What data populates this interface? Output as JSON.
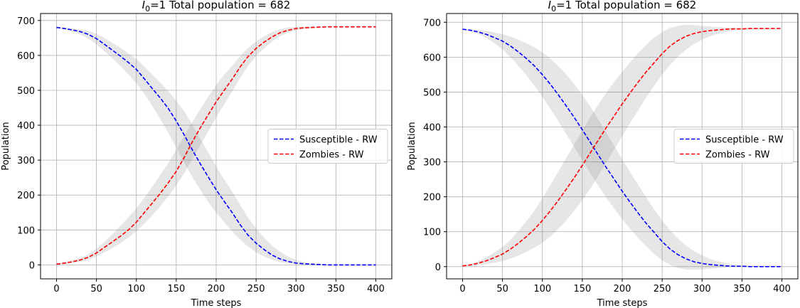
{
  "chart_data": [
    {
      "type": "line",
      "title_prefix": "I",
      "title_subscript": "0",
      "title_suffix": "=1 Total population = 682",
      "xlabel": "Time steps",
      "ylabel": "Population",
      "xlim": [
        -20,
        420
      ],
      "ylim": [
        -40,
        720
      ],
      "xticks": [
        0,
        50,
        100,
        150,
        200,
        250,
        300,
        350,
        400
      ],
      "yticks": [
        0,
        100,
        200,
        300,
        400,
        500,
        600,
        700
      ],
      "grid": true,
      "legend_position": "center-right",
      "series": [
        {
          "name": "Susceptible - RW",
          "color": "#0000ff",
          "style": "dashed",
          "x": [
            0,
            10,
            20,
            30,
            40,
            50,
            60,
            70,
            80,
            90,
            100,
            110,
            120,
            130,
            140,
            150,
            160,
            170,
            180,
            190,
            200,
            210,
            220,
            230,
            240,
            250,
            260,
            270,
            280,
            290,
            300,
            310,
            320,
            330,
            340,
            350,
            360,
            370,
            380,
            390,
            400
          ],
          "values": [
            680,
            677,
            673,
            668,
            660,
            648,
            632,
            615,
            598,
            580,
            560,
            533,
            505,
            478,
            448,
            412,
            372,
            330,
            290,
            252,
            215,
            182,
            150,
            115,
            85,
            62,
            44,
            28,
            17,
            10,
            5,
            3,
            2,
            1,
            0,
            0,
            0,
            0,
            0,
            0,
            0
          ],
          "band_low": [
            680,
            675,
            668,
            660,
            648,
            632,
            612,
            592,
            570,
            546,
            520,
            490,
            455,
            418,
            378,
            336,
            292,
            252,
            215,
            180,
            150,
            122,
            96,
            72,
            52,
            36,
            24,
            15,
            8,
            4,
            2,
            1,
            0,
            0,
            0,
            0,
            0,
            0,
            0,
            0,
            0
          ],
          "band_high": [
            681,
            679,
            677,
            674,
            670,
            662,
            650,
            636,
            622,
            606,
            590,
            568,
            545,
            522,
            498,
            470,
            440,
            402,
            362,
            322,
            282,
            245,
            210,
            172,
            135,
            105,
            78,
            55,
            38,
            24,
            14,
            8,
            4,
            2,
            1,
            1,
            0,
            0,
            0,
            0,
            0
          ]
        },
        {
          "name": "Zombies - RW",
          "color": "#ff0000",
          "style": "dashed",
          "x": [
            0,
            10,
            20,
            30,
            40,
            50,
            60,
            70,
            80,
            90,
            100,
            110,
            120,
            130,
            140,
            150,
            160,
            170,
            180,
            190,
            200,
            210,
            220,
            230,
            240,
            250,
            260,
            270,
            280,
            290,
            300,
            310,
            320,
            330,
            340,
            350,
            360,
            370,
            380,
            390,
            400
          ],
          "values": [
            2,
            5,
            9,
            14,
            22,
            34,
            50,
            66,
            82,
            100,
            122,
            150,
            177,
            205,
            235,
            268,
            308,
            352,
            392,
            430,
            467,
            500,
            532,
            567,
            597,
            620,
            638,
            653,
            665,
            672,
            677,
            679,
            680,
            681,
            682,
            682,
            682,
            682,
            682,
            682,
            682
          ],
          "band_low": [
            1,
            2,
            5,
            9,
            15,
            24,
            36,
            48,
            62,
            78,
            96,
            118,
            142,
            168,
            196,
            228,
            262,
            302,
            342,
            382,
            422,
            460,
            496,
            535,
            570,
            598,
            620,
            640,
            655,
            665,
            672,
            676,
            678,
            680,
            681,
            681,
            682,
            682,
            682,
            682,
            682
          ],
          "band_high": [
            3,
            8,
            14,
            20,
            30,
            46,
            66,
            88,
            112,
            136,
            162,
            192,
            224,
            258,
            292,
            330,
            370,
            408,
            446,
            482,
            515,
            545,
            570,
            598,
            622,
            640,
            655,
            667,
            675,
            680,
            682,
            683,
            683,
            683,
            683,
            683,
            683,
            683,
            683,
            683,
            683
          ]
        }
      ]
    },
    {
      "type": "line",
      "title_prefix": "I",
      "title_subscript": "0",
      "title_suffix": "=1 Total population = 682",
      "xlabel": "Time steps",
      "ylabel": "Population",
      "xlim": [
        -20,
        420
      ],
      "ylim": [
        -35,
        725
      ],
      "xticks": [
        0,
        50,
        100,
        150,
        200,
        250,
        300,
        350,
        400
      ],
      "yticks": [
        0,
        100,
        200,
        300,
        400,
        500,
        600,
        700
      ],
      "grid": true,
      "legend_position": "center-right",
      "series": [
        {
          "name": "Susceptible - RW",
          "color": "#0000ff",
          "style": "dashed",
          "x": [
            0,
            10,
            20,
            30,
            40,
            50,
            60,
            70,
            80,
            90,
            100,
            110,
            120,
            130,
            140,
            150,
            160,
            170,
            180,
            190,
            200,
            210,
            220,
            230,
            240,
            250,
            260,
            270,
            280,
            290,
            300,
            310,
            320,
            330,
            340,
            350,
            360,
            370,
            380,
            390,
            400
          ],
          "values": [
            680,
            677,
            672,
            665,
            656,
            646,
            632,
            615,
            596,
            575,
            550,
            522,
            492,
            460,
            427,
            392,
            356,
            320,
            284,
            250,
            216,
            184,
            153,
            124,
            98,
            72,
            50,
            34,
            22,
            14,
            9,
            6,
            4,
            2,
            1,
            1,
            0,
            0,
            0,
            0,
            0
          ],
          "band_low": [
            680,
            674,
            666,
            655,
            640,
            622,
            600,
            575,
            548,
            518,
            486,
            452,
            416,
            379,
            342,
            305,
            268,
            232,
            198,
            166,
            136,
            108,
            82,
            58,
            36,
            18,
            5,
            -4,
            -8,
            -9,
            -8,
            -6,
            -4,
            -2,
            -1,
            0,
            0,
            0,
            0,
            0,
            0
          ],
          "band_high": [
            681,
            680,
            678,
            675,
            671,
            666,
            659,
            650,
            640,
            628,
            614,
            596,
            574,
            550,
            522,
            492,
            458,
            422,
            384,
            346,
            308,
            270,
            234,
            198,
            164,
            132,
            104,
            80,
            60,
            44,
            32,
            22,
            15,
            10,
            6,
            4,
            2,
            1,
            1,
            0,
            0
          ]
        },
        {
          "name": "Zombies - RW",
          "color": "#ff0000",
          "style": "dashed",
          "x": [
            0,
            10,
            20,
            30,
            40,
            50,
            60,
            70,
            80,
            90,
            100,
            110,
            120,
            130,
            140,
            150,
            160,
            170,
            180,
            190,
            200,
            210,
            220,
            230,
            240,
            250,
            260,
            270,
            280,
            290,
            300,
            310,
            320,
            330,
            340,
            350,
            360,
            370,
            380,
            390,
            400
          ],
          "values": [
            2,
            5,
            10,
            17,
            26,
            36,
            50,
            67,
            86,
            107,
            132,
            160,
            190,
            222,
            255,
            290,
            326,
            362,
            398,
            432,
            466,
            498,
            529,
            558,
            584,
            610,
            632,
            648,
            660,
            668,
            673,
            676,
            678,
            680,
            681,
            681,
            682,
            682,
            682,
            682,
            682
          ],
          "band_low": [
            1,
            2,
            4,
            7,
            11,
            16,
            23,
            32,
            42,
            54,
            68,
            86,
            108,
            132,
            160,
            190,
            224,
            260,
            298,
            336,
            374,
            412,
            448,
            484,
            518,
            550,
            578,
            602,
            622,
            638,
            650,
            660,
            667,
            672,
            676,
            678,
            680,
            681,
            681,
            682,
            682
          ],
          "band_high": [
            3,
            8,
            16,
            27,
            41,
            56,
            77,
            102,
            130,
            160,
            196,
            234,
            272,
            312,
            350,
            390,
            428,
            464,
            498,
            530,
            558,
            586,
            612,
            636,
            656,
            672,
            684,
            690,
            693,
            692,
            690,
            688,
            686,
            685,
            684,
            683,
            683,
            683,
            683,
            682,
            682
          ]
        }
      ]
    }
  ]
}
